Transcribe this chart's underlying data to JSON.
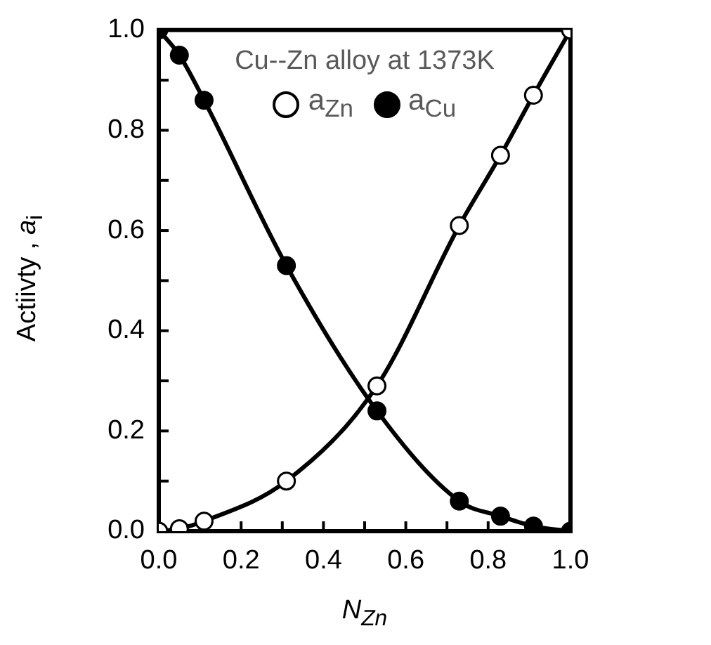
{
  "chart_data": {
    "type": "line",
    "title": "Cu--Zn alloy at 1373K",
    "xlabel": "N$_{Zn}$",
    "ylabel": "Actiivty , a$_{i}$",
    "xlim": [
      0,
      1
    ],
    "ylim": [
      0,
      1
    ],
    "xticks": [
      {
        "value": 0,
        "label": "0.0"
      },
      {
        "value": 0.1,
        "label": null
      },
      0.2,
      {
        "value": 0.3,
        "label": null
      },
      0.4,
      {
        "value": 0.5,
        "label": null
      },
      0.6,
      {
        "value": 0.7,
        "label": null
      },
      0.8,
      {
        "value": 0.9,
        "label": null
      },
      {
        "value": 1,
        "label": "1.0"
      }
    ],
    "yticks": [
      {
        "value": 0,
        "label": "0.0"
      },
      {
        "value": 0.1,
        "label": null
      },
      0.2,
      {
        "value": 0.3,
        "label": null
      },
      0.4,
      {
        "value": 0.5,
        "label": null
      },
      0.6,
      {
        "value": 0.7,
        "label": null
      },
      0.8,
      {
        "value": 0.9,
        "label": null
      },
      {
        "value": 1,
        "label": "1.0"
      }
    ],
    "x": [
      0,
      0.05,
      0.11,
      0.31,
      0.53,
      0.73,
      0.83,
      0.91,
      1
    ],
    "series": [
      {
        "name": "a$_{Zn}$",
        "color": "#000000",
        "values": [
          0,
          0.005,
          0.02,
          0.1,
          0.29,
          0.61,
          0.75,
          0.87,
          1
        ]
      },
      {
        "name": "a$_{Cu}$",
        "color": "#000000",
        "values": [
          1,
          0.95,
          0.86,
          0.53,
          0.24,
          0.06,
          0.03,
          0.01,
          0
        ]
      }
    ],
    "marker": "circle",
    "line_style": "solid",
    "legend": "top",
    "grid": false
  }
}
